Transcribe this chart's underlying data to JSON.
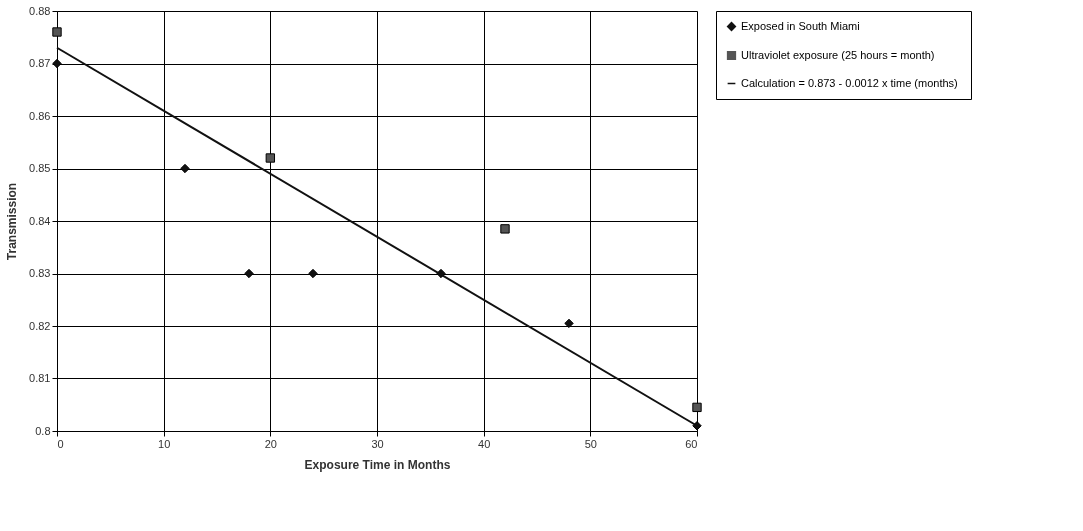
{
  "chart_data": {
    "type": "scatter",
    "xlabel": "Exposure Time in Months",
    "ylabel": "Transmission",
    "xlim": [
      0,
      60
    ],
    "xticks": [
      0,
      10,
      20,
      30,
      40,
      50,
      60
    ],
    "ylim": [
      0.8,
      0.88
    ],
    "yticks": [
      0.8,
      0.81,
      0.82,
      0.83,
      0.84,
      0.85,
      0.86,
      0.87,
      0.88
    ],
    "grid": true,
    "legend": "right",
    "series": [
      {
        "name": "Exposed in South Miami",
        "marker": "diamond",
        "color": "#111111",
        "x": [
          0,
          12,
          18,
          24,
          36,
          48,
          60
        ],
        "values": [
          0.87,
          0.85,
          0.83,
          0.83,
          0.83,
          0.8205,
          0.801
        ]
      },
      {
        "name": "Ultraviolet exposure (25 hours = month)",
        "marker": "square",
        "color": "#555555",
        "x": [
          0,
          20,
          42,
          60
        ],
        "values": [
          0.876,
          0.852,
          0.8385,
          0.8045
        ]
      },
      {
        "name": "Calculation = 0.873 - 0.0012 x  time (months)",
        "type": "line",
        "marker": "none",
        "line_style": "solid",
        "color": "#111111",
        "x": [
          0,
          60
        ],
        "values": [
          0.873,
          0.801
        ]
      }
    ]
  }
}
